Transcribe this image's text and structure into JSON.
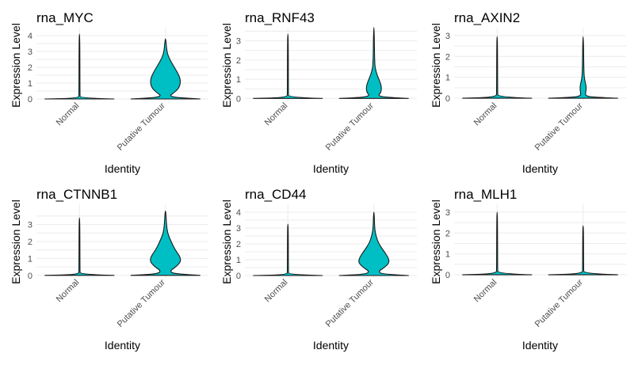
{
  "colors": {
    "violin_fill": "#00BFC4",
    "violin_outline": "#1a1a1a",
    "grid": "#ebebeb",
    "text": "#000000",
    "tick_text": "#4d4d4d"
  },
  "chart_data": [
    {
      "type": "violin",
      "title": "rna_MYC",
      "xlabel": "Identity",
      "ylabel": "Expression Level",
      "categories": [
        "Normal",
        "Putative Tumour"
      ],
      "yticks": [
        0,
        1,
        2,
        3,
        4
      ],
      "ylim": [
        -0.15,
        4.4
      ],
      "grid": true,
      "series": [
        {
          "category": "Normal",
          "max": 4.1,
          "profile": [
            [
              0,
              1.0
            ],
            [
              0.05,
              0.02
            ],
            [
              0.3,
              0.015
            ],
            [
              4.1,
              0.01
            ]
          ]
        },
        {
          "category": "Putative Tumour",
          "max": 3.8,
          "profile": [
            [
              0,
              1.0
            ],
            [
              0.08,
              0.3
            ],
            [
              0.2,
              0.12
            ],
            [
              0.35,
              0.22
            ],
            [
              0.7,
              0.4
            ],
            [
              1.2,
              0.44
            ],
            [
              1.7,
              0.34
            ],
            [
              2.2,
              0.2
            ],
            [
              2.6,
              0.1
            ],
            [
              3.0,
              0.04
            ],
            [
              3.8,
              0.01
            ]
          ]
        }
      ]
    },
    {
      "type": "violin",
      "title": "rna_RNF43",
      "xlabel": "Identity",
      "ylabel": "Expression Level",
      "categories": [
        "Normal",
        "Putative Tumour"
      ],
      "yticks": [
        0,
        1,
        2,
        3
      ],
      "ylim": [
        -0.15,
        3.6
      ],
      "grid": true,
      "series": [
        {
          "category": "Normal",
          "max": 3.35,
          "profile": [
            [
              0,
              1.0
            ],
            [
              0.05,
              0.02
            ],
            [
              0.3,
              0.015
            ],
            [
              3.35,
              0.01
            ]
          ]
        },
        {
          "category": "Putative Tumour",
          "max": 3.7,
          "profile": [
            [
              0,
              1.0
            ],
            [
              0.06,
              0.3
            ],
            [
              0.15,
              0.12
            ],
            [
              0.3,
              0.2
            ],
            [
              0.55,
              0.22
            ],
            [
              0.8,
              0.19
            ],
            [
              1.1,
              0.12
            ],
            [
              1.4,
              0.06
            ],
            [
              1.8,
              0.02
            ],
            [
              3.7,
              0.01
            ]
          ]
        }
      ]
    },
    {
      "type": "violin",
      "title": "rna_AXIN2",
      "xlabel": "Identity",
      "ylabel": "Expression Level",
      "categories": [
        "Normal",
        "Putative Tumour"
      ],
      "yticks": [
        0,
        1,
        2,
        3
      ],
      "ylim": [
        -0.15,
        3.3
      ],
      "grid": true,
      "series": [
        {
          "category": "Normal",
          "max": 2.95,
          "profile": [
            [
              0,
              1.0
            ],
            [
              0.05,
              0.02
            ],
            [
              0.3,
              0.015
            ],
            [
              2.95,
              0.01
            ]
          ]
        },
        {
          "category": "Putative Tumour",
          "max": 2.95,
          "profile": [
            [
              0,
              1.0
            ],
            [
              0.05,
              0.25
            ],
            [
              0.12,
              0.07
            ],
            [
              0.25,
              0.07
            ],
            [
              0.45,
              0.09
            ],
            [
              0.65,
              0.08
            ],
            [
              0.9,
              0.04
            ],
            [
              1.3,
              0.02
            ],
            [
              2.95,
              0.01
            ]
          ]
        }
      ]
    },
    {
      "type": "violin",
      "title": "rna_CTNNB1",
      "xlabel": "Identity",
      "ylabel": "Expression Level",
      "categories": [
        "Normal",
        "Putative Tumour"
      ],
      "yticks": [
        0,
        1,
        2,
        3
      ],
      "ylim": [
        -0.15,
        4.1
      ],
      "grid": true,
      "series": [
        {
          "category": "Normal",
          "max": 3.4,
          "profile": [
            [
              0,
              1.0
            ],
            [
              0.05,
              0.02
            ],
            [
              0.3,
              0.015
            ],
            [
              3.4,
              0.01
            ]
          ]
        },
        {
          "category": "Putative Tumour",
          "max": 3.8,
          "profile": [
            [
              0,
              1.0
            ],
            [
              0.08,
              0.25
            ],
            [
              0.25,
              0.12
            ],
            [
              0.5,
              0.3
            ],
            [
              0.8,
              0.44
            ],
            [
              1.1,
              0.42
            ],
            [
              1.5,
              0.28
            ],
            [
              2.0,
              0.16
            ],
            [
              2.5,
              0.06
            ],
            [
              3.0,
              0.03
            ],
            [
              3.8,
              0.01
            ]
          ]
        }
      ]
    },
    {
      "type": "violin",
      "title": "rna_CD44",
      "xlabel": "Identity",
      "ylabel": "Expression Level",
      "categories": [
        "Normal",
        "Putative Tumour"
      ],
      "yticks": [
        0,
        1,
        2,
        3,
        4
      ],
      "ylim": [
        -0.15,
        4.4
      ],
      "grid": true,
      "series": [
        {
          "category": "Normal",
          "max": 3.25,
          "profile": [
            [
              0,
              1.0
            ],
            [
              0.05,
              0.02
            ],
            [
              0.3,
              0.015
            ],
            [
              3.25,
              0.01
            ]
          ]
        },
        {
          "category": "Putative Tumour",
          "max": 4.0,
          "profile": [
            [
              0,
              1.0
            ],
            [
              0.08,
              0.25
            ],
            [
              0.25,
              0.12
            ],
            [
              0.5,
              0.3
            ],
            [
              0.8,
              0.44
            ],
            [
              1.1,
              0.42
            ],
            [
              1.5,
              0.3
            ],
            [
              2.0,
              0.14
            ],
            [
              2.5,
              0.06
            ],
            [
              3.0,
              0.02
            ],
            [
              4.0,
              0.01
            ]
          ]
        }
      ]
    },
    {
      "type": "violin",
      "title": "rna_MLH1",
      "xlabel": "Identity",
      "ylabel": "Expression Level",
      "categories": [
        "Normal",
        "Putative Tumour"
      ],
      "yticks": [
        0,
        1,
        2,
        3
      ],
      "ylim": [
        -0.15,
        3.3
      ],
      "grid": true,
      "series": [
        {
          "category": "Normal",
          "max": 3.0,
          "profile": [
            [
              0,
              1.0
            ],
            [
              0.05,
              0.02
            ],
            [
              0.3,
              0.015
            ],
            [
              3.0,
              0.01
            ]
          ]
        },
        {
          "category": "Putative Tumour",
          "max": 2.35,
          "profile": [
            [
              0,
              1.0
            ],
            [
              0.05,
              0.02
            ],
            [
              0.3,
              0.015
            ],
            [
              2.35,
              0.01
            ]
          ]
        }
      ]
    }
  ]
}
